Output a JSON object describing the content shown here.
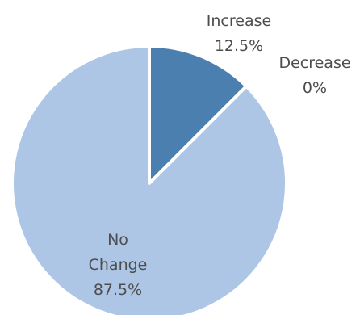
{
  "chart_data": {
    "type": "pie",
    "slices": [
      {
        "label": "Increase",
        "value": 12.5,
        "value_text": "12.5%",
        "color": "#4a7fb0"
      },
      {
        "label": "Decrease",
        "value": 0,
        "value_text": "0%",
        "color": "#7ea6d3"
      },
      {
        "label": "No Change",
        "value": 87.5,
        "value_text": "87.5%",
        "color": "#adc6e6"
      }
    ],
    "start": "top",
    "direction": "clockwise",
    "slice_border_color": "#ffffff",
    "legend": "none"
  }
}
